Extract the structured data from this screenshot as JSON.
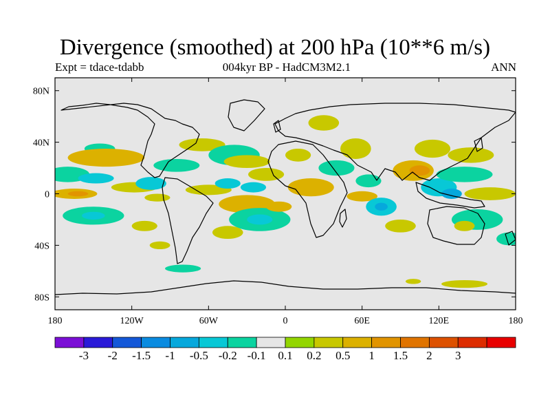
{
  "chart_data": {
    "type": "heatmap",
    "title": "Divergence (smoothed) at 200 hPa (10**6 m/s)",
    "subtitle": "004kyr BP - HadCM3M2.1",
    "experiment_label": "Expt = tdace-tdabb",
    "season": "ANN",
    "projection": "cylindrical-equidistant",
    "lon_range": [
      -180,
      180
    ],
    "lat_range": [
      -90,
      90
    ],
    "x_ticks": [
      {
        "value": -180,
        "label": "180"
      },
      {
        "value": -120,
        "label": "120W"
      },
      {
        "value": -60,
        "label": "60W"
      },
      {
        "value": 0,
        "label": "0"
      },
      {
        "value": 60,
        "label": "60E"
      },
      {
        "value": 120,
        "label": "120E"
      },
      {
        "value": 180,
        "label": "180"
      }
    ],
    "y_ticks": [
      {
        "value": 80,
        "label": "80N"
      },
      {
        "value": 40,
        "label": "40N"
      },
      {
        "value": 0,
        "label": "0"
      },
      {
        "value": -40,
        "label": "40S"
      },
      {
        "value": -80,
        "label": "80S"
      }
    ],
    "colorbar": {
      "colors": [
        "#7b0fd6",
        "#2a1ad8",
        "#1458d8",
        "#0a8be0",
        "#06a8dc",
        "#08c8d6",
        "#0bd3a0",
        "#e6e6e6",
        "#93d600",
        "#c8c800",
        "#dcb100",
        "#e19400",
        "#e07400",
        "#dd5100",
        "#dd2c00",
        "#e80000"
      ],
      "labels": [
        "-3",
        "-2",
        "-1.5",
        "-1",
        "-0.5",
        "-0.2",
        "-0.1",
        "0.1",
        "0.2",
        "0.5",
        "1",
        "1.5",
        "2",
        "3"
      ]
    },
    "regions": [
      {
        "lon": -170,
        "lat": 15,
        "rx": 17,
        "ry": 6,
        "level": -0.2
      },
      {
        "lon": -148,
        "lat": 12,
        "rx": 14,
        "ry": 4,
        "level": -0.5
      },
      {
        "lon": -165,
        "lat": 0,
        "rx": 18,
        "ry": 4,
        "level": 0.5
      },
      {
        "lon": -162,
        "lat": 0,
        "rx": 8,
        "ry": 2,
        "level": 1
      },
      {
        "lon": -145,
        "lat": 35,
        "rx": 12,
        "ry": 4,
        "level": -0.2
      },
      {
        "lon": -150,
        "lat": -17,
        "rx": 24,
        "ry": 7,
        "level": -0.2
      },
      {
        "lon": -150,
        "lat": -17,
        "rx": 9,
        "ry": 3,
        "level": -0.5
      },
      {
        "lon": -140,
        "lat": 28,
        "rx": 30,
        "ry": 7,
        "level": 0.5
      },
      {
        "lon": -118,
        "lat": 5,
        "rx": 18,
        "ry": 4,
        "level": 0.2
      },
      {
        "lon": -105,
        "lat": 8,
        "rx": 12,
        "ry": 5,
        "level": -0.5
      },
      {
        "lon": -100,
        "lat": -3,
        "rx": 10,
        "ry": 3,
        "level": 0.2
      },
      {
        "lon": -110,
        "lat": -25,
        "rx": 10,
        "ry": 4,
        "level": 0.2
      },
      {
        "lon": -98,
        "lat": -40,
        "rx": 8,
        "ry": 3,
        "level": 0.2
      },
      {
        "lon": -80,
        "lat": -58,
        "rx": 14,
        "ry": 3,
        "level": -0.2
      },
      {
        "lon": -85,
        "lat": 22,
        "rx": 18,
        "ry": 5,
        "level": -0.2
      },
      {
        "lon": -65,
        "lat": 38,
        "rx": 18,
        "ry": 5,
        "level": 0.2
      },
      {
        "lon": -60,
        "lat": 3,
        "rx": 18,
        "ry": 4,
        "level": 0.2
      },
      {
        "lon": -45,
        "lat": 8,
        "rx": 10,
        "ry": 4,
        "level": -0.5
      },
      {
        "lon": -40,
        "lat": 30,
        "rx": 20,
        "ry": 8,
        "level": -0.2
      },
      {
        "lon": -30,
        "lat": 25,
        "rx": 18,
        "ry": 5,
        "level": 0.2
      },
      {
        "lon": -15,
        "lat": 15,
        "rx": 14,
        "ry": 5,
        "level": 0.2
      },
      {
        "lon": -25,
        "lat": 5,
        "rx": 10,
        "ry": 4,
        "level": -0.5
      },
      {
        "lon": -30,
        "lat": -8,
        "rx": 22,
        "ry": 7,
        "level": 0.5
      },
      {
        "lon": -20,
        "lat": -20,
        "rx": 24,
        "ry": 9,
        "level": -0.2
      },
      {
        "lon": -20,
        "lat": -20,
        "rx": 10,
        "ry": 4,
        "level": -0.5
      },
      {
        "lon": -5,
        "lat": -10,
        "rx": 10,
        "ry": 4,
        "level": 0.5
      },
      {
        "lon": -45,
        "lat": -30,
        "rx": 12,
        "ry": 5,
        "level": 0.2
      },
      {
        "lon": 20,
        "lat": 5,
        "rx": 18,
        "ry": 7,
        "level": 0.5
      },
      {
        "lon": 10,
        "lat": 30,
        "rx": 10,
        "ry": 5,
        "level": 0.2
      },
      {
        "lon": 40,
        "lat": 20,
        "rx": 14,
        "ry": 6,
        "level": -0.2
      },
      {
        "lon": 30,
        "lat": 55,
        "rx": 12,
        "ry": 6,
        "level": 0.2
      },
      {
        "lon": 55,
        "lat": 35,
        "rx": 12,
        "ry": 8,
        "level": 0.2
      },
      {
        "lon": 65,
        "lat": 10,
        "rx": 10,
        "ry": 5,
        "level": -0.2
      },
      {
        "lon": 60,
        "lat": -2,
        "rx": 12,
        "ry": 4,
        "level": 0.5
      },
      {
        "lon": 75,
        "lat": -10,
        "rx": 12,
        "ry": 7,
        "level": -0.5
      },
      {
        "lon": 75,
        "lat": -10,
        "rx": 5,
        "ry": 3,
        "level": -1
      },
      {
        "lon": 90,
        "lat": -25,
        "rx": 12,
        "ry": 5,
        "level": 0.2
      },
      {
        "lon": 100,
        "lat": 18,
        "rx": 16,
        "ry": 8,
        "level": 0.5
      },
      {
        "lon": 105,
        "lat": 18,
        "rx": 8,
        "ry": 4,
        "level": 1
      },
      {
        "lon": 115,
        "lat": 35,
        "rx": 14,
        "ry": 7,
        "level": 0.2
      },
      {
        "lon": 120,
        "lat": 5,
        "rx": 14,
        "ry": 7,
        "level": -0.5
      },
      {
        "lon": 130,
        "lat": 0,
        "rx": 8,
        "ry": 4,
        "level": -1
      },
      {
        "lon": 140,
        "lat": 15,
        "rx": 22,
        "ry": 6,
        "level": -0.2
      },
      {
        "lon": 145,
        "lat": 30,
        "rx": 18,
        "ry": 6,
        "level": 0.2
      },
      {
        "lon": 160,
        "lat": 0,
        "rx": 20,
        "ry": 5,
        "level": 0.2
      },
      {
        "lon": 150,
        "lat": -20,
        "rx": 20,
        "ry": 8,
        "level": -0.2
      },
      {
        "lon": 140,
        "lat": -25,
        "rx": 8,
        "ry": 4,
        "level": 0.2
      },
      {
        "lon": 175,
        "lat": -35,
        "rx": 10,
        "ry": 5,
        "level": -0.2
      },
      {
        "lon": 140,
        "lat": -70,
        "rx": 18,
        "ry": 3,
        "level": 0.2
      },
      {
        "lon": 100,
        "lat": -68,
        "rx": 6,
        "ry": 2,
        "level": 0.2
      }
    ]
  }
}
